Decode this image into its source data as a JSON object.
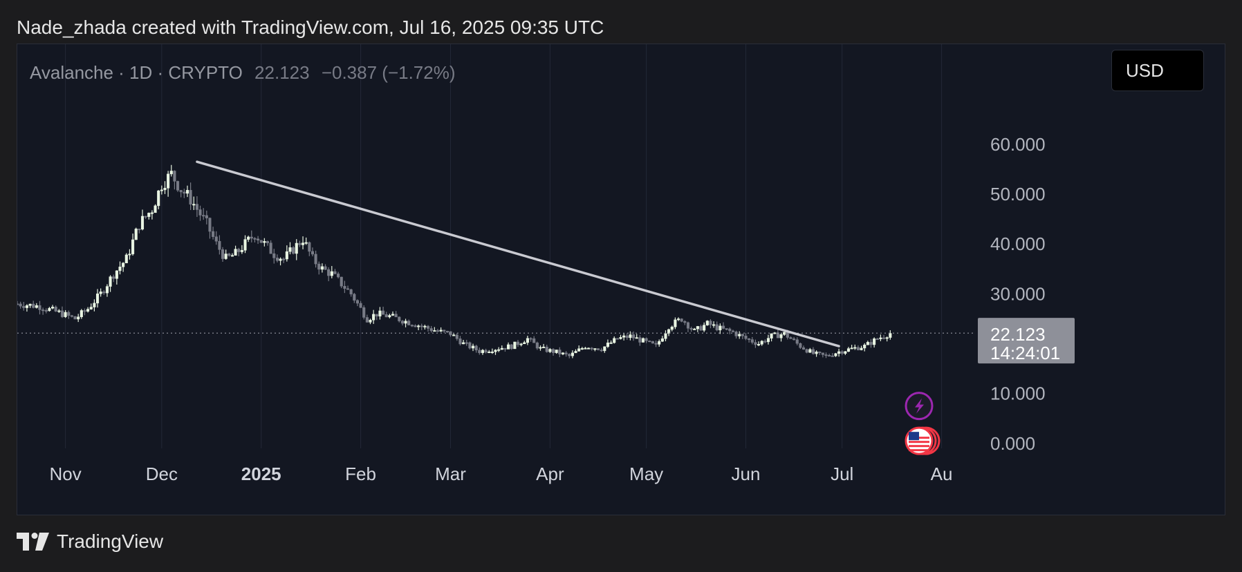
{
  "caption": "Nade_zhada created with TradingView.com, Jul 16, 2025 09:35 UTC",
  "legend": {
    "symbol": "Avalanche · 1D · CRYPTO",
    "last": "22.123",
    "change": "−0.387 (−1.72%)"
  },
  "currency_button": "USD",
  "price_tag": {
    "price": "22.123",
    "countdown": "14:24:01"
  },
  "footer": {
    "brand": "TradingView"
  },
  "colors": {
    "background": "#131722",
    "candle_up": "#e9f5e3",
    "candle_down": "#787b86",
    "trendline": "#c9cad1",
    "price_label_bg": "#8e9099",
    "event_purple": "#9c27b0",
    "event_red": "#f23645"
  },
  "chart_data": {
    "type": "line",
    "title": "",
    "xlabel": "",
    "ylabel": "",
    "ylim": [
      -1,
      69
    ],
    "yticks": [
      "60.000",
      "50.000",
      "40.000",
      "30.000",
      "10.000",
      "0.000"
    ],
    "yticks_values": [
      60,
      50,
      40,
      30,
      10,
      0
    ],
    "xticks": [
      "Nov",
      "Dec",
      "2025",
      "Feb",
      "Mar",
      "Apr",
      "May",
      "Jun",
      "Jul",
      "Au"
    ],
    "xticks_dates": [
      "2024-11-01",
      "2024-12-01",
      "2025-01-01",
      "2025-02-01",
      "2025-03-01",
      "2025-04-01",
      "2025-05-01",
      "2025-06-01",
      "2025-07-01",
      "2025-08-01"
    ],
    "x_range": [
      "2024-10-17",
      "2025-08-11"
    ],
    "series": [
      {
        "style": "candlestick-close",
        "x": [
          "2024-10-17",
          "2024-10-24",
          "2024-10-31",
          "2024-11-04",
          "2024-11-08",
          "2024-11-12",
          "2024-11-16",
          "2024-11-20",
          "2024-11-24",
          "2024-11-28",
          "2024-12-01",
          "2024-12-04",
          "2024-12-07",
          "2024-12-10",
          "2024-12-12",
          "2024-12-15",
          "2024-12-18",
          "2024-12-21",
          "2024-12-24",
          "2024-12-27",
          "2024-12-30",
          "2025-01-02",
          "2025-01-05",
          "2025-01-08",
          "2025-01-11",
          "2025-01-14",
          "2025-01-17",
          "2025-01-20",
          "2025-01-23",
          "2025-01-26",
          "2025-01-29",
          "2025-02-01",
          "2025-02-03",
          "2025-02-06",
          "2025-02-10",
          "2025-02-15",
          "2025-02-20",
          "2025-02-25",
          "2025-03-01",
          "2025-03-05",
          "2025-03-10",
          "2025-03-15",
          "2025-03-20",
          "2025-03-25",
          "2025-03-29",
          "2025-04-03",
          "2025-04-07",
          "2025-04-12",
          "2025-04-17",
          "2025-04-22",
          "2025-04-26",
          "2025-04-30",
          "2025-05-04",
          "2025-05-08",
          "2025-05-12",
          "2025-05-16",
          "2025-05-20",
          "2025-05-24",
          "2025-05-28",
          "2025-06-01",
          "2025-06-05",
          "2025-06-09",
          "2025-06-13",
          "2025-06-18",
          "2025-06-22",
          "2025-06-26",
          "2025-06-30",
          "2025-07-04",
          "2025-07-08",
          "2025-07-12",
          "2025-07-16"
        ],
        "values": [
          28,
          27.5,
          26,
          25,
          27,
          30,
          34,
          37,
          44,
          47,
          52,
          54,
          51,
          49,
          47,
          44,
          40,
          37,
          38,
          40,
          42,
          40,
          38,
          37,
          39,
          41,
          37,
          35,
          34,
          32,
          30,
          27,
          25,
          26,
          25.5,
          24.5,
          23.5,
          22.5,
          22,
          20,
          18.5,
          19,
          19.5,
          21,
          19,
          18.3,
          17.5,
          19.5,
          19,
          21,
          21.5,
          20.5,
          19.5,
          23.5,
          25,
          22.5,
          24,
          23,
          22.3,
          21,
          20,
          21.5,
          22,
          19.5,
          18,
          17.5,
          18.4,
          19,
          19.5,
          21,
          22.1
        ]
      }
    ],
    "trendline": {
      "from": [
        "2024-12-12",
        56.5
      ],
      "to": [
        "2025-06-30",
        19.5
      ]
    },
    "last_price": 22.123
  }
}
